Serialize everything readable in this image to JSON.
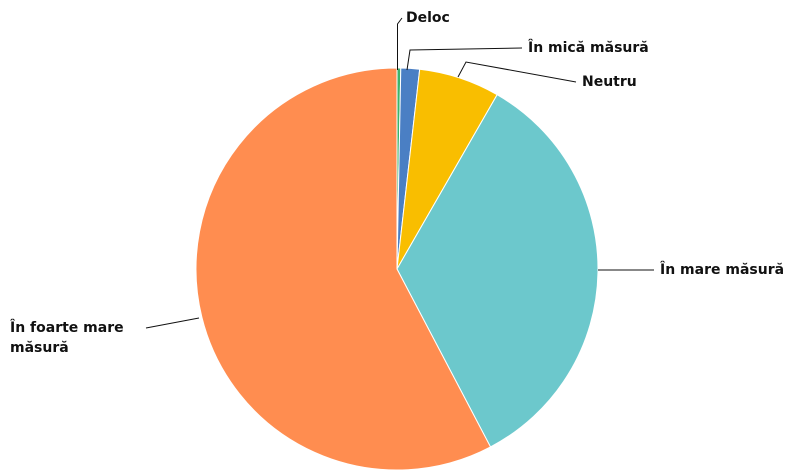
{
  "chart_data": {
    "type": "pie",
    "categories": [
      "Deloc",
      "În mică măsură",
      "Neutru",
      "În mare măsură",
      "În foarte mare măsură"
    ],
    "values": [
      0.3,
      1.5,
      6.5,
      34,
      57.7
    ],
    "colors": [
      "#3cb36b",
      "#4a7fc4",
      "#f9be00",
      "#6cc8cc",
      "#ff8d50"
    ]
  }
}
